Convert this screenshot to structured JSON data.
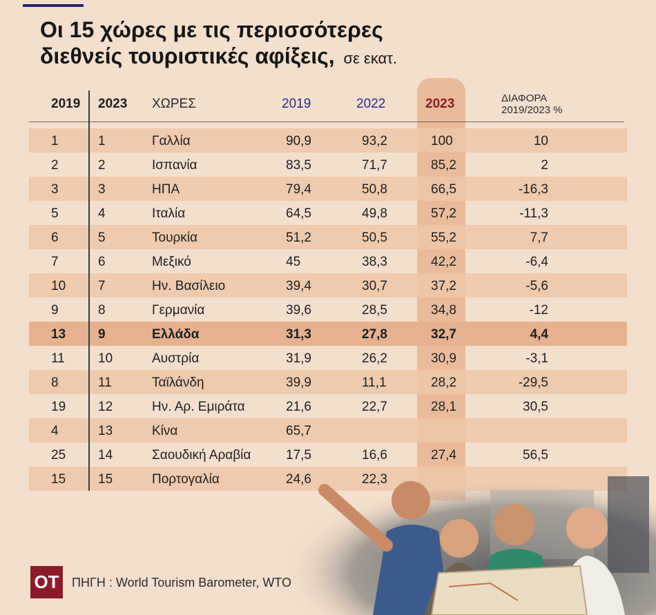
{
  "title": {
    "line1": "Οι 15 χώρες με τις περισσότερες",
    "line2": "διεθνείς τουριστικές αφίξεις,",
    "unit": "σε εκατ."
  },
  "header": {
    "rank2019": "2019",
    "rank2023": "2023",
    "country": "ΧΩΡΕΣ",
    "y2019": "2019",
    "y2022": "2022",
    "y2023": "2023",
    "diff_line1": "ΔΙΑΦΟΡΑ",
    "diff_line2": "2019/2023 %"
  },
  "chart_data": {
    "type": "table",
    "columns": [
      "2019",
      "2023",
      "ΧΩΡΕΣ",
      "2019",
      "2022",
      "2023",
      "ΔΙΑΦΟΡΑ 2019/2023 %"
    ],
    "highlight_row": "Ελλάδα",
    "highlight_column": "2023",
    "colors": {
      "highlight_column": "#e8b592",
      "stripe": "#ecc7a8",
      "greece_row": "#e5b190",
      "title_2023": "#8c1c2c",
      "year_blue": "#2a2a8a"
    },
    "rows": [
      {
        "r19": "1",
        "r23": "1",
        "country": "Γαλλία",
        "v19": "90,9",
        "v22": "93,2",
        "v23": "100",
        "diff": "10"
      },
      {
        "r19": "2",
        "r23": "2",
        "country": "Ισπανία",
        "v19": "83,5",
        "v22": "71,7",
        "v23": "85,2",
        "diff": "2"
      },
      {
        "r19": "3",
        "r23": "3",
        "country": "ΗΠΑ",
        "v19": "79,4",
        "v22": "50,8",
        "v23": "66,5",
        "diff": "-16,3"
      },
      {
        "r19": "5",
        "r23": "4",
        "country": "Ιταλία",
        "v19": "64,5",
        "v22": "49,8",
        "v23": "57,2",
        "diff": "-11,3"
      },
      {
        "r19": "6",
        "r23": "5",
        "country": "Τουρκία",
        "v19": "51,2",
        "v22": "50,5",
        "v23": "55,2",
        "diff": "7,7"
      },
      {
        "r19": "7",
        "r23": "6",
        "country": "Μεξικό",
        "v19": "45",
        "v22": "38,3",
        "v23": "42,2",
        "diff": "-6,4"
      },
      {
        "r19": "10",
        "r23": "7",
        "country": "Ην. Βασίλειο",
        "v19": "39,4",
        "v22": "30,7",
        "v23": "37,2",
        "diff": "-5,6"
      },
      {
        "r19": "9",
        "r23": "8",
        "country": "Γερμανία",
        "v19": "39,6",
        "v22": "28,5",
        "v23": "34,8",
        "diff": "-12"
      },
      {
        "r19": "13",
        "r23": "9",
        "country": "Ελλάδα",
        "v19": "31,3",
        "v22": "27,8",
        "v23": "32,7",
        "diff": "4,4"
      },
      {
        "r19": "11",
        "r23": "10",
        "country": "Αυστρία",
        "v19": "31,9",
        "v22": "26,2",
        "v23": "30,9",
        "diff": "-3,1"
      },
      {
        "r19": "8",
        "r23": "11",
        "country": "Ταϊλάνδη",
        "v19": "39,9",
        "v22": "11,1",
        "v23": "28,2",
        "diff": "-29,5"
      },
      {
        "r19": "19",
        "r23": "12",
        "country": "Ην. Αρ. Εμιράτα",
        "v19": "21,6",
        "v22": "22,7",
        "v23": "28,1",
        "diff": "30,5"
      },
      {
        "r19": "4",
        "r23": "13",
        "country": "Κίνα",
        "v19": "65,7",
        "v22": "",
        "v23": "",
        "diff": ""
      },
      {
        "r19": "25",
        "r23": "14",
        "country": "Σαουδική Αραβία",
        "v19": "17,5",
        "v22": "16,6",
        "v23": "27,4",
        "diff": "56,5"
      },
      {
        "r19": "15",
        "r23": "15",
        "country": "Πορτογαλία",
        "v19": "24,6",
        "v22": "22,3",
        "v23": "",
        "diff": ""
      }
    ]
  },
  "footer": {
    "logo": "ΟΤ",
    "source": "ΠΗΓΗ : World Tourism Barometer,  WTO"
  }
}
